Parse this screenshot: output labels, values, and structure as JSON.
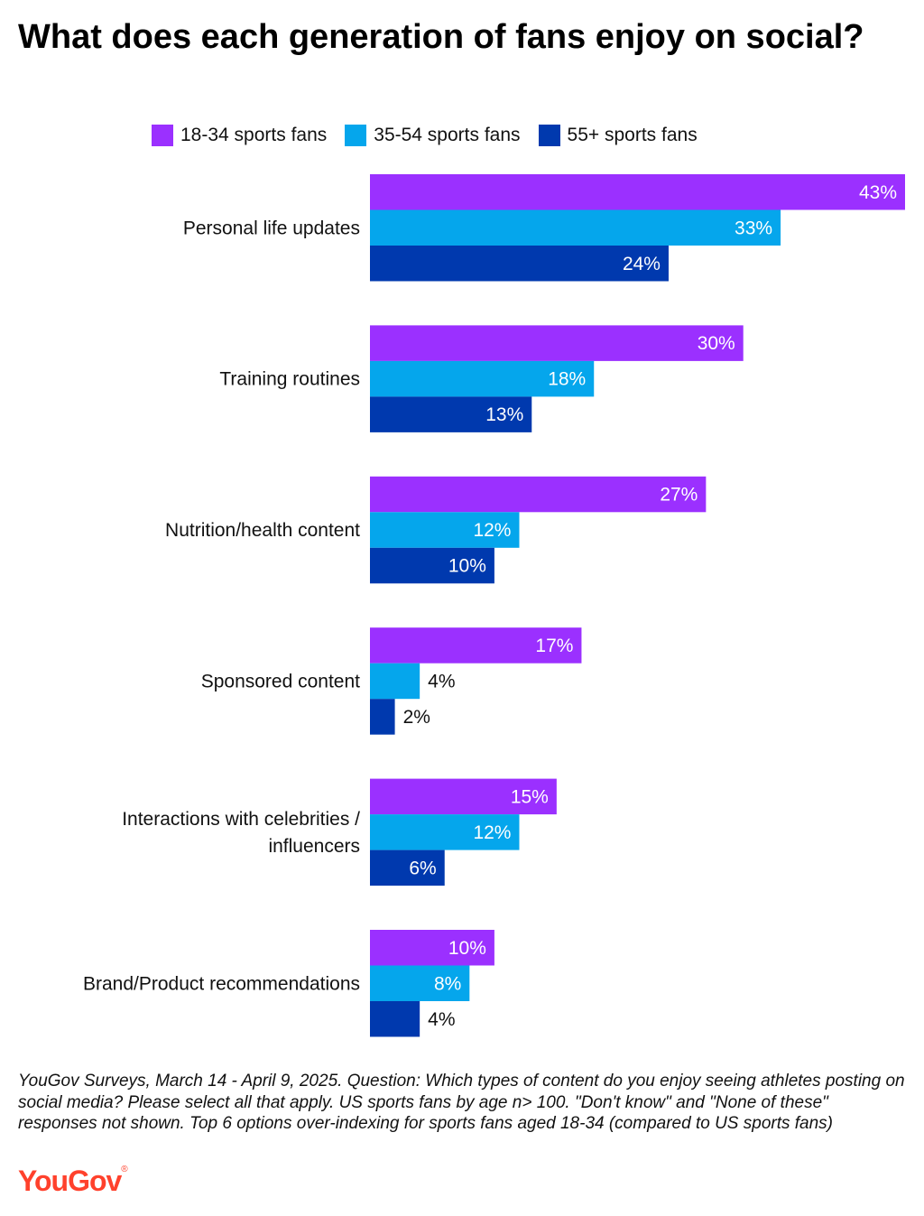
{
  "title": "What does each generation of fans enjoy on social?",
  "footnote": "YouGov Surveys, March 14 - April 9, 2025. Question: Which types of content do you enjoy seeing athletes posting on social media? Please select all that apply. US sports fans by age n> 100. \"Don't know\" and \"None of these\" responses not shown. Top 6 options over-indexing for sports fans aged 18-34 (compared to US sports fans)",
  "logo": "YouGov",
  "chart_data": {
    "type": "bar",
    "orientation": "horizontal",
    "categories": [
      "Personal life updates",
      "Training routines",
      "Nutrition/health content",
      "Sponsored content",
      "Interactions with celebrities / influencers",
      "Brand/Product recommendations"
    ],
    "series": [
      {
        "name": "18-34 sports fans",
        "color": "#9b30ff",
        "values": [
          43,
          30,
          27,
          17,
          15,
          10
        ]
      },
      {
        "name": "35-54 sports fans",
        "color": "#05a6ec",
        "values": [
          33,
          18,
          12,
          4,
          12,
          8
        ]
      },
      {
        "name": "55+ sports fans",
        "color": "#0039ae",
        "values": [
          24,
          13,
          10,
          2,
          6,
          4
        ]
      }
    ],
    "value_suffix": "%",
    "xlim": [
      0,
      43
    ],
    "legend": "top"
  }
}
